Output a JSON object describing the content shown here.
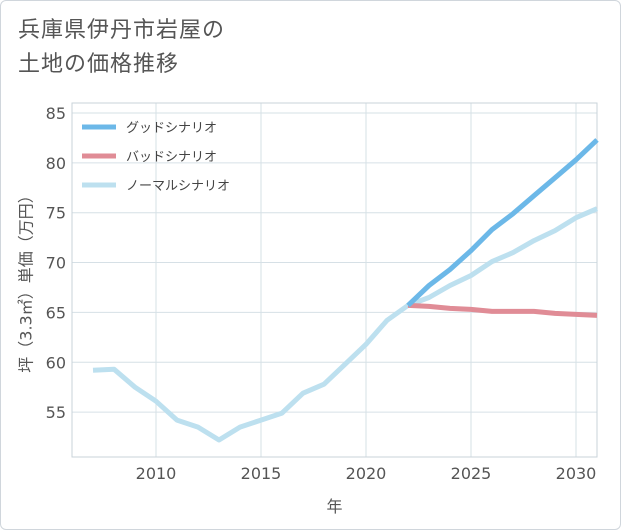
{
  "chart_data": {
    "type": "line",
    "title_lines": [
      "兵庫県伊丹市岩屋の",
      "土地の価格推移"
    ],
    "xlabel": "年",
    "ylabel": "坪（3.3㎡）単価（万円）",
    "xlim": [
      2006,
      2031
    ],
    "ylim": [
      50.5,
      86
    ],
    "xticks": [
      2010,
      2015,
      2020,
      2025,
      2030
    ],
    "yticks": [
      55,
      60,
      65,
      70,
      75,
      80,
      85
    ],
    "grid": true,
    "legend_position": "top-left",
    "series": [
      {
        "name": "グッドシナリオ",
        "color": "#6cb8e8",
        "x": [
          2022,
          2023,
          2024,
          2025,
          2026,
          2027,
          2028,
          2029,
          2030,
          2031
        ],
        "y": [
          65.7,
          67.7,
          69.3,
          71.2,
          73.3,
          74.9,
          76.7,
          78.5,
          80.3,
          82.3
        ]
      },
      {
        "name": "バッドシナリオ",
        "color": "#e08c96",
        "x": [
          2022,
          2023,
          2024,
          2025,
          2026,
          2027,
          2028,
          2029,
          2030,
          2031
        ],
        "y": [
          65.7,
          65.6,
          65.4,
          65.3,
          65.1,
          65.1,
          65.1,
          64.9,
          64.8,
          64.7
        ]
      },
      {
        "name": "ノーマルシナリオ",
        "color": "#bde0ef",
        "x": [
          2007,
          2008,
          2009,
          2010,
          2011,
          2012,
          2013,
          2014,
          2015,
          2016,
          2017,
          2018,
          2019,
          2020,
          2021,
          2022,
          2023,
          2024,
          2025,
          2026,
          2027,
          2028,
          2029,
          2030,
          2031
        ],
        "y": [
          59.2,
          59.3,
          57.5,
          56.1,
          54.2,
          53.5,
          52.2,
          53.5,
          54.2,
          54.9,
          56.9,
          57.8,
          59.8,
          61.8,
          64.2,
          65.7,
          66.5,
          67.7,
          68.7,
          70.1,
          71.0,
          72.2,
          73.2,
          74.5,
          75.4
        ]
      }
    ]
  }
}
